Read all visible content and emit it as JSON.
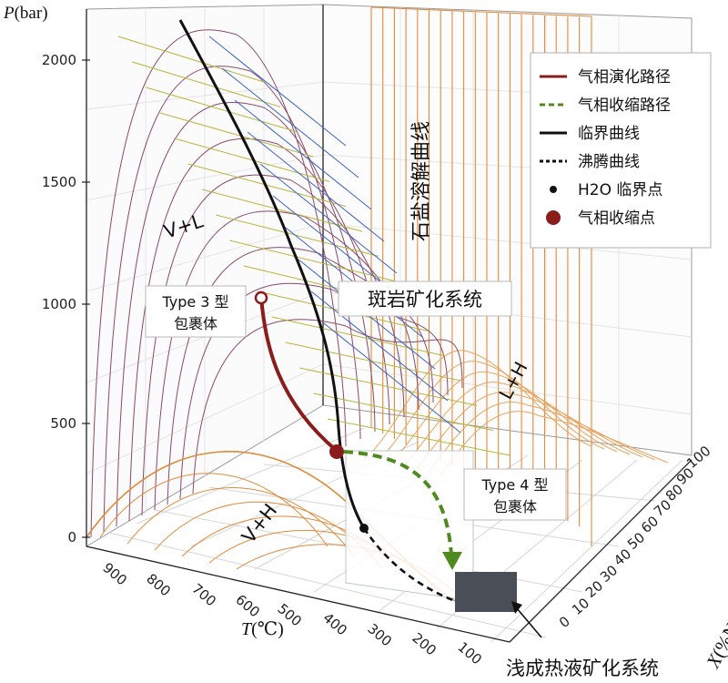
{
  "axes": {
    "p_symbol": "P",
    "p_unit": "(bar)",
    "t_symbol": "T",
    "t_unit": "(℃)",
    "x_symbol": "X",
    "x_unit": "(%NaCl equiv)",
    "p_ticks": [
      "0",
      "500",
      "1000",
      "1500",
      "2000"
    ],
    "t_ticks": [
      "900",
      "800",
      "700",
      "600",
      "500",
      "400",
      "300",
      "200",
      "100"
    ],
    "x_ticks": [
      "0",
      "10",
      "20",
      "30",
      "40",
      "50",
      "60",
      "70",
      "80",
      "90",
      "100"
    ]
  },
  "labels": {
    "v_plus_l": "V+L",
    "v_plus_h": "V+H",
    "l_plus_h": "L+H",
    "halite_curve": "石盐溶解曲线",
    "porphyry": "斑岩矿化系统",
    "epithermal": "浅成热液矿化系统",
    "type3_line1": "Type 3 型",
    "type3_line2": "包裹体",
    "type4_line1": "Type 4 型",
    "type4_line2": "包裹体"
  },
  "legend": {
    "items": [
      {
        "label": "气相演化路径",
        "kind": "line",
        "color": "#8b1c1c",
        "dash": "none"
      },
      {
        "label": "气相收缩路径",
        "kind": "line",
        "color": "#4f8a1f",
        "dash": "6,4"
      },
      {
        "label": "临界曲线",
        "kind": "line",
        "color": "#111111",
        "dash": "none"
      },
      {
        "label": "沸腾曲线",
        "kind": "line",
        "color": "#111111",
        "dash": "4,3"
      },
      {
        "label": "H2O 临界点",
        "kind": "dot",
        "color": "#111111"
      },
      {
        "label": "气相收缩点",
        "kind": "bigdot",
        "color": "#8b1c1c"
      }
    ]
  },
  "colors": {
    "surface_green": "#b7b43a",
    "surface_purple": "#8a4a6a",
    "surface_blue": "#3a63c8",
    "halite_orange": "#e08a3c",
    "vapor_path": "#8b1c1c",
    "contraction_path": "#4f8a1f",
    "epithermal_box": "#4a4f57"
  }
}
